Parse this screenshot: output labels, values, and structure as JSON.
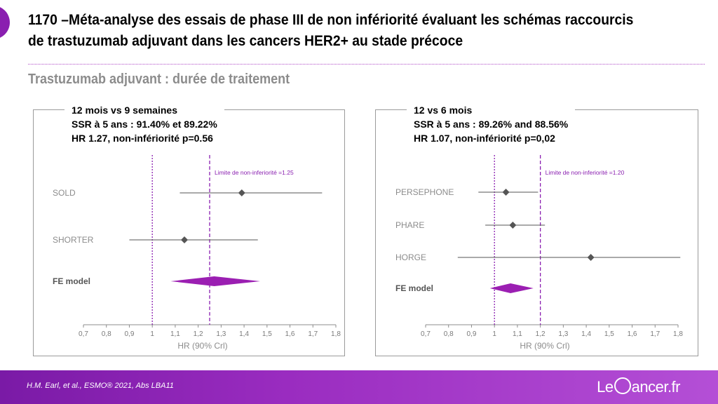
{
  "title": "1170 –Méta-analyse des essais de phase III de non infériorité évaluant les schémas raccourcis de trastuzumab adjuvant dans les cancers HER2+ au stade précoce",
  "subtitle": "Trastuzumab adjuvant : durée de traitement",
  "footer": {
    "citation": "H.M. Earl, et al., ESMO® 2021, Abs LBA11",
    "brand_pre": "Le",
    "brand_post": "ancer.fr"
  },
  "colors": {
    "accent": "#8a1fb0",
    "diamond_fill": "#9b1fb2",
    "marker": "#555555",
    "guide_line": "#8a1fb0"
  },
  "chart_data": [
    {
      "type": "forest",
      "header": [
        "12 mois vs 9 semaines",
        "SSR à 5 ans : 91.40% et 89.22%",
        "HR 1.27, non-infériorité  p=0.56"
      ],
      "xlabel": "HR (90% Crl)",
      "xlim": [
        0.7,
        1.8
      ],
      "xticks": [
        "0,7",
        "0,8",
        "0,9",
        "1",
        "1,1",
        "1,2",
        "1,3",
        "1,4",
        "1,5",
        "1,6",
        "1,7",
        "1,8"
      ],
      "reference_line": 1.0,
      "margin_line": 1.25,
      "margin_label": "Limite de non-inferiorité =1.25",
      "studies": [
        {
          "label": "SOLD",
          "hr": 1.39,
          "lower": 1.12,
          "upper": 1.74
        },
        {
          "label": "SHORTER",
          "hr": 1.14,
          "lower": 0.9,
          "upper": 1.46
        }
      ],
      "pooled": {
        "label": "FE model",
        "hr": 1.27,
        "lower": 1.08,
        "upper": 1.47
      }
    },
    {
      "type": "forest",
      "header": [
        "12 vs 6 mois",
        "SSR à 5 ans : 89.26% and 88.56%",
        "HR 1.07, non-infériorité    p=0,02"
      ],
      "xlabel": "HR (90% Crl)",
      "xlim": [
        0.7,
        1.8
      ],
      "xticks": [
        "0,7",
        "0,8",
        "0,9",
        "1",
        "1,1",
        "1,2",
        "1,3",
        "1,4",
        "1,5",
        "1,6",
        "1,7",
        "1,8"
      ],
      "reference_line": 1.0,
      "margin_line": 1.2,
      "margin_label": "Limite de non-inferiorité =1.20",
      "studies": [
        {
          "label": "PERSEPHONE",
          "hr": 1.05,
          "lower": 0.93,
          "upper": 1.19
        },
        {
          "label": "PHARE",
          "hr": 1.08,
          "lower": 0.96,
          "upper": 1.22
        },
        {
          "label": "HORGE",
          "hr": 1.42,
          "lower": 0.84,
          "upper": 1.81
        }
      ],
      "pooled": {
        "label": "FE model",
        "hr": 1.07,
        "lower": 0.98,
        "upper": 1.17
      }
    }
  ]
}
